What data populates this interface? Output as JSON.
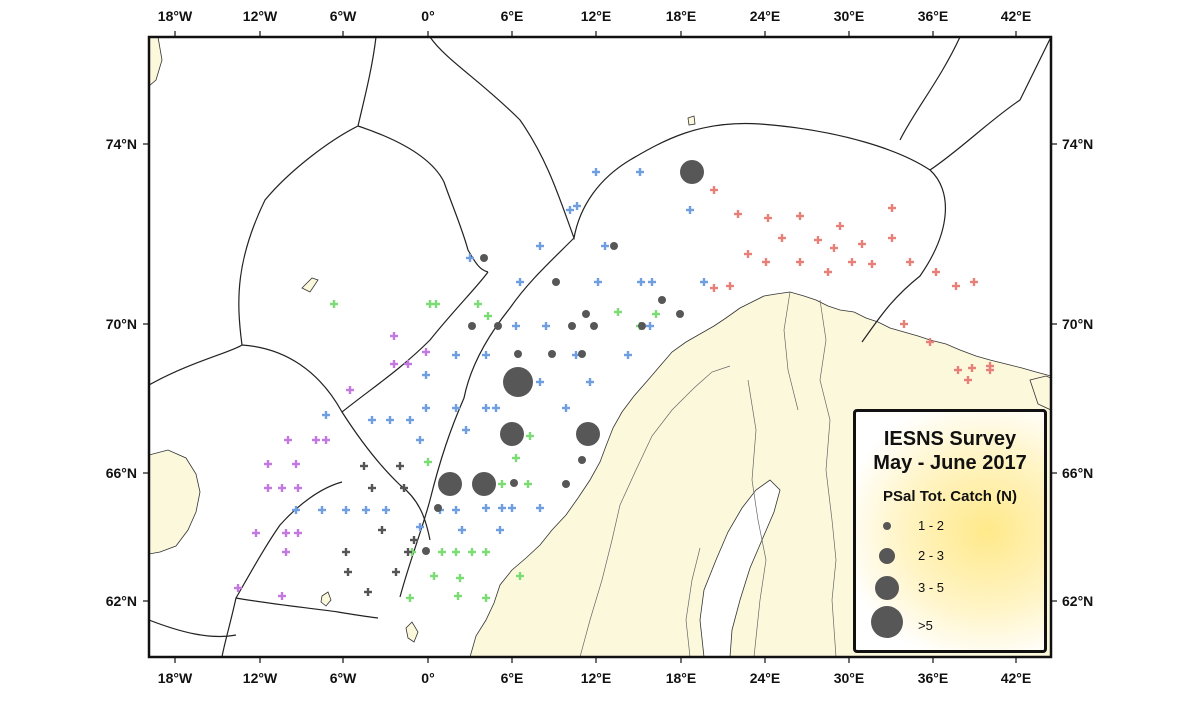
{
  "map": {
    "top_lon_labels": [
      "18°W",
      "12°W",
      "6°W",
      "0°",
      "6°E",
      "12°E",
      "18°E",
      "24°E",
      "30°E",
      "36°E",
      "42°E"
    ],
    "bottom_lon_labels": [
      "18°W",
      "12°W",
      "6°W",
      "0°",
      "6°E",
      "12°E",
      "18°E",
      "24°E",
      "30°E",
      "36°E",
      "42°E"
    ],
    "left_lat_labels": [
      "74°N",
      "70°N",
      "66°N",
      "62°N"
    ],
    "right_lat_labels": [
      "74°N",
      "70°N",
      "66°N",
      "62°N"
    ],
    "colors": {
      "land": "#fcf8dc",
      "sea": "#ffffff",
      "boundary": "#222222",
      "station_blue": "#6f9fe0",
      "station_red": "#e8807a",
      "station_green": "#7bdc74",
      "station_purple": "#c479e0",
      "station_dark": "#555555",
      "catch": "#575757"
    }
  },
  "legend": {
    "title_line1": "IESNS Survey",
    "title_line2": "May - June 2017",
    "subtitle": "PSal Tot. Catch (N)",
    "items": [
      {
        "label": "1 - 2",
        "size": "small"
      },
      {
        "label": "2 - 3",
        "size": "medium"
      },
      {
        "label": "3 - 5",
        "size": "large"
      },
      {
        "label": ">5",
        "size": "xlarge"
      }
    ]
  }
}
